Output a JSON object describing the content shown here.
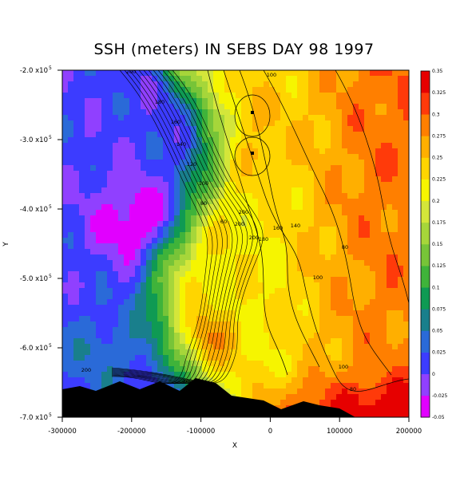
{
  "chart_data": {
    "type": "heatmap",
    "title": "SSH (meters) IN SEBS DAY 98 1997",
    "xlabel": "X",
    "ylabel": "Y",
    "xlim": [
      -300000,
      200000
    ],
    "ylim": [
      -700000,
      -200000
    ],
    "x_ticks": [
      {
        "value": -300000,
        "label": "-300000"
      },
      {
        "value": -200000,
        "label": "-200000"
      },
      {
        "value": -100000,
        "label": "-100000"
      },
      {
        "value": 0,
        "label": "0"
      },
      {
        "value": 100000,
        "label": "100000"
      },
      {
        "value": 200000,
        "label": "200000"
      }
    ],
    "y_ticks": [
      {
        "value": -200000,
        "label": "-2.0 x10",
        "exp": "5"
      },
      {
        "value": -300000,
        "label": "-3.0 x10",
        "exp": "5"
      },
      {
        "value": -400000,
        "label": "-4.0 x10",
        "exp": "5"
      },
      {
        "value": -500000,
        "label": "-5.0 x10",
        "exp": "5"
      },
      {
        "value": -600000,
        "label": "-6.0 x10",
        "exp": "5"
      },
      {
        "value": -700000,
        "label": "-7.0 x10",
        "exp": "5"
      }
    ],
    "colorbar": {
      "levels": [
        -0.05,
        -0.025,
        0,
        0.025,
        0.05,
        0.075,
        0.1,
        0.125,
        0.15,
        0.175,
        0.2,
        0.225,
        0.25,
        0.275,
        0.3,
        0.325,
        0.35
      ],
      "labels": [
        "-0.05",
        "-0.025",
        "0",
        "0.025",
        "0.05",
        "0.075",
        "0.1",
        "0.125",
        "0.15",
        "0.175",
        "0.2",
        "0.225",
        "0.25",
        "0.275",
        "0.3",
        "0.325",
        "0.35"
      ],
      "colors": [
        "#e100ff",
        "#9040ff",
        "#3c3cff",
        "#2a6ad8",
        "#197f8c",
        "#0f9a53",
        "#3fb33a",
        "#77c438",
        "#a6d63a",
        "#d4e63a",
        "#f6f500",
        "#ffd500",
        "#ffaf00",
        "#ff7f00",
        "#ff3a0a",
        "#e60000"
      ]
    },
    "contour_labels": [
      "200",
      "180",
      "160",
      "140",
      "120",
      "100",
      "80",
      "60",
      "200",
      "200",
      "200",
      "180",
      "160",
      "140",
      "100",
      "80",
      "100",
      "80",
      "200",
      "200",
      "200",
      "100"
    ]
  }
}
